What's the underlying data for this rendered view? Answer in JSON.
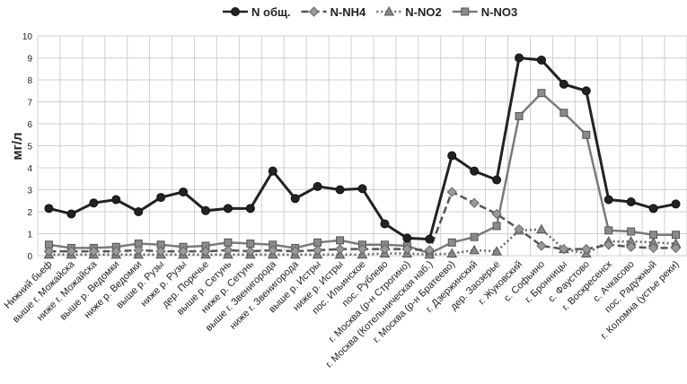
{
  "chart_data": {
    "type": "line",
    "title": "",
    "xlabel": "",
    "ylabel": "мг/л",
    "ylim": [
      0,
      10
    ],
    "yticks": [
      0,
      1,
      2,
      3,
      4,
      5,
      6,
      7,
      8,
      9,
      10
    ],
    "grid": true,
    "legend_position": "top-center",
    "categories": [
      "Нижний бьеф",
      "выше г. Можайска",
      "ниже г. Можайска",
      "выше р. Ведомки",
      "ниже р. Ведомки",
      "выше р. Рузы",
      "ниже р. Рузы",
      "дер. Поречье",
      "выше р. Сетунь",
      "ниже р. Сетунь",
      "выше г. Звенигорода",
      "ниже г. Звенигорода",
      "выше р. Истры",
      "ниже р. Истры",
      "пос. Ильинское",
      "пос. Рублево",
      "г. Москва (р-н Строгино)",
      "г. Москва (Котельническая наб.)",
      "г. Москва (р-н Братеево)",
      "г. Дзержинский",
      "дер. Заозерье",
      "г. Жуковский",
      "с. Софьино",
      "г. Бронницы",
      "с. Фаустово",
      "г. Воскресенск",
      "с. Ачкасово",
      "пос. Радужный",
      "г. Коломна (устье реки)"
    ],
    "series": [
      {
        "name": "N общ.",
        "color": "#222222",
        "style": "solid",
        "marker": "circle",
        "values": [
          2.15,
          1.9,
          2.4,
          2.55,
          2.0,
          2.65,
          2.9,
          2.05,
          2.15,
          2.15,
          3.85,
          2.6,
          3.15,
          3.0,
          3.05,
          1.45,
          0.8,
          0.75,
          4.55,
          3.85,
          3.45,
          9.0,
          8.9,
          7.8,
          7.5,
          2.55,
          2.45,
          2.15,
          2.35
        ]
      },
      {
        "name": "N-NH4",
        "color": "#555555",
        "style": "dashed",
        "marker": "diamond",
        "values": [
          0.2,
          0.2,
          0.2,
          0.2,
          0.25,
          0.2,
          0.2,
          0.2,
          0.25,
          0.2,
          0.25,
          0.2,
          0.25,
          0.3,
          0.3,
          0.3,
          0.3,
          0.25,
          2.9,
          2.4,
          1.9,
          1.2,
          0.45,
          0.3,
          0.3,
          0.5,
          0.4,
          0.35,
          0.35
        ]
      },
      {
        "name": "N-NO2",
        "color": "#666666",
        "style": "dotted",
        "marker": "triangle",
        "values": [
          0.05,
          0.05,
          0.05,
          0.05,
          0.05,
          0.05,
          0.05,
          0.05,
          0.05,
          0.05,
          0.05,
          0.05,
          0.05,
          0.05,
          0.05,
          0.1,
          0.1,
          0.05,
          0.1,
          0.25,
          0.2,
          1.15,
          1.2,
          0.3,
          0.1,
          0.65,
          0.65,
          0.6,
          0.55
        ]
      },
      {
        "name": "N-NO3",
        "color": "#7a7a7a",
        "style": "solid",
        "marker": "square",
        "values": [
          0.5,
          0.35,
          0.35,
          0.4,
          0.55,
          0.5,
          0.4,
          0.45,
          0.6,
          0.55,
          0.5,
          0.35,
          0.6,
          0.7,
          0.5,
          0.5,
          0.45,
          0.1,
          0.6,
          0.85,
          1.35,
          6.35,
          7.4,
          6.5,
          5.5,
          1.15,
          1.1,
          0.95,
          0.95
        ]
      }
    ]
  }
}
